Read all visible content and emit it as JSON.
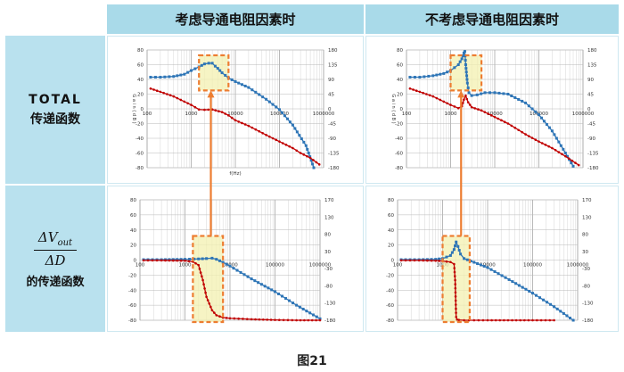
{
  "headers": {
    "left": "考虑导通电阻因素时",
    "right": "不考虑导通电阻因素时"
  },
  "row_labels": {
    "total_line1": "TOTAL",
    "total_line2": "传递函数",
    "frac_num_main": "ΔV",
    "frac_num_sub": "out",
    "frac_den": "ΔD",
    "frac_line3": "的传递函数"
  },
  "caption": "图21",
  "colors": {
    "gain": "#2e75b6",
    "phase": "#c00000",
    "highlight_fill": "#f3f0b0",
    "highlight_border": "#ed7d31",
    "arrow": "#ed7d31",
    "header_bg": "#a9dae9",
    "side_bg": "#b9e1ee"
  },
  "chart_data": [
    {
      "type": "line",
      "panel": "top-left",
      "xscale": "log",
      "xlim": [
        100,
        1000000
      ],
      "x_ticks": [
        "100",
        "1000",
        "10000",
        "100000",
        "1000000"
      ],
      "ylim": [
        -80,
        80
      ],
      "y_ticks": [
        "80",
        "60",
        "40",
        "20",
        "0",
        "-20",
        "-40",
        "-60",
        "-80"
      ],
      "y2lim": [
        -180,
        180
      ],
      "y2_ticks": [
        "180",
        "135",
        "90",
        "45",
        "0",
        "-45",
        "-90",
        "-135",
        "-180"
      ],
      "ylabel": "G a i n ( d B )",
      "xlabel": "f(Hz)",
      "highlight_x": [
        1500,
        7000
      ],
      "series": [
        {
          "role": "gain",
          "y_axis": "left",
          "x": [
            120,
            200,
            400,
            700,
            1000,
            1500,
            2000,
            2500,
            3000,
            3500,
            4000,
            5000,
            7000,
            10000,
            20000,
            50000,
            100000,
            200000,
            400000,
            600000
          ],
          "values": [
            43,
            43,
            44,
            47,
            52,
            57,
            61,
            62,
            62,
            58,
            55,
            49,
            42,
            37,
            29,
            13,
            -1,
            -22,
            -50,
            -80
          ]
        },
        {
          "role": "phase",
          "y_axis": "right",
          "x": [
            120,
            200,
            400,
            700,
            1000,
            1500,
            2000,
            3000,
            5000,
            7000,
            10000,
            20000,
            50000,
            100000,
            200000,
            300000,
            500000,
            800000
          ],
          "values": [
            62,
            52,
            38,
            22,
            12,
            -2,
            -3,
            -2,
            -10,
            -20,
            -35,
            -52,
            -80,
            -100,
            -120,
            -135,
            -150,
            -170
          ]
        }
      ]
    },
    {
      "type": "line",
      "panel": "top-right",
      "xscale": "log",
      "xlim": [
        100,
        1000000
      ],
      "x_ticks": [
        "100",
        "1000",
        "10000",
        "100000",
        "1000000"
      ],
      "ylim": [
        -80,
        80
      ],
      "y_ticks": [
        "80",
        "60",
        "40",
        "20",
        "0",
        "-20",
        "-40",
        "-60",
        "-80"
      ],
      "y2lim": [
        -180,
        180
      ],
      "y2_ticks": [
        "180",
        "135",
        "90",
        "45",
        "0",
        "-45",
        "-90",
        "-135",
        "-180"
      ],
      "ylabel": "G a i n ( d B )",
      "highlight_x": [
        1000,
        5000
      ],
      "series": [
        {
          "role": "gain",
          "y_axis": "left",
          "x": [
            120,
            200,
            400,
            700,
            1000,
            1500,
            1800,
            2000,
            2100,
            2200,
            2400,
            2600,
            3000,
            4000,
            6000,
            10000,
            20000,
            50000,
            100000,
            200000,
            400000,
            600000
          ],
          "values": [
            43,
            43,
            45,
            48,
            52,
            60,
            68,
            76,
            78,
            60,
            35,
            22,
            18,
            19,
            22,
            22,
            20,
            8,
            -8,
            -30,
            -60,
            -78
          ]
        },
        {
          "role": "phase",
          "y_axis": "right",
          "x": [
            120,
            200,
            400,
            700,
            1000,
            1500,
            1800,
            2000,
            2200,
            2500,
            3000,
            5000,
            10000,
            20000,
            50000,
            100000,
            200000,
            400000,
            800000
          ],
          "values": [
            62,
            52,
            38,
            22,
            12,
            2,
            8,
            28,
            40,
            20,
            5,
            -5,
            -25,
            -45,
            -78,
            -100,
            -120,
            -145,
            -172
          ]
        }
      ]
    },
    {
      "type": "line",
      "panel": "bottom-left",
      "xscale": "log",
      "xlim": [
        100,
        1000000
      ],
      "x_ticks": [
        "100",
        "1000",
        "10000",
        "100000",
        "1000000"
      ],
      "ylim": [
        -80,
        80
      ],
      "y_ticks": [
        "80",
        "60",
        "40",
        "20",
        "0",
        "-20",
        "-40",
        "-60",
        "-80"
      ],
      "y2lim": [
        -180,
        180
      ],
      "y2_ticks": [
        "170",
        "130",
        "80",
        "30",
        "-30",
        "-80",
        "-130",
        "-180"
      ],
      "highlight_x": [
        1500,
        7000
      ],
      "series": [
        {
          "role": "gain",
          "y_axis": "left",
          "x": [
            120,
            300,
            1000,
            2000,
            3000,
            4000,
            5000,
            7000,
            10000,
            30000,
            100000,
            300000,
            1000000
          ],
          "values": [
            0.5,
            0.5,
            1,
            1.5,
            2,
            2.5,
            1,
            -3,
            -8,
            -25,
            -42,
            -60,
            -78
          ]
        },
        {
          "role": "phase",
          "y_axis": "right",
          "x": [
            120,
            300,
            1000,
            1500,
            2000,
            2500,
            3000,
            4000,
            5000,
            7000,
            10000,
            30000,
            100000,
            300000,
            1000000
          ],
          "values": [
            -1,
            -1,
            -2,
            -5,
            -15,
            -60,
            -110,
            -150,
            -165,
            -172,
            -174,
            -177,
            -179,
            -180,
            -180
          ]
        }
      ]
    },
    {
      "type": "line",
      "panel": "bottom-right",
      "xscale": "log",
      "xlim": [
        100,
        1000000
      ],
      "x_ticks": [
        "100",
        "1000",
        "10000",
        "100000",
        "1000000"
      ],
      "ylim": [
        -80,
        80
      ],
      "y_ticks": [
        "80",
        "60",
        "40",
        "20",
        "0",
        "-20",
        "-40",
        "-60",
        "-80"
      ],
      "y2lim": [
        -180,
        180
      ],
      "y2_ticks": [
        "170",
        "130",
        "80",
        "30",
        "-30",
        "-80",
        "-130",
        "-180"
      ],
      "highlight_x": [
        1000,
        4000
      ],
      "series": [
        {
          "role": "gain",
          "y_axis": "left",
          "x": [
            120,
            300,
            700,
            1000,
            1500,
            1800,
            2000,
            2200,
            2500,
            3000,
            5000,
            10000,
            30000,
            100000,
            300000,
            800000
          ],
          "values": [
            0.5,
            0.5,
            1,
            2,
            6,
            14,
            24,
            18,
            8,
            2,
            -3,
            -10,
            -26,
            -44,
            -62,
            -80
          ]
        },
        {
          "role": "phase",
          "y_axis": "right",
          "x": [
            120,
            300,
            700,
            1000,
            1500,
            1800,
            1900,
            2000,
            2100,
            2300,
            3000,
            5000,
            10000,
            100000,
            300000
          ],
          "values": [
            -1,
            -1,
            -2,
            -3,
            -6,
            -12,
            -60,
            -170,
            -178,
            -179,
            -180,
            -180,
            -180,
            -180,
            -180
          ]
        }
      ]
    }
  ]
}
